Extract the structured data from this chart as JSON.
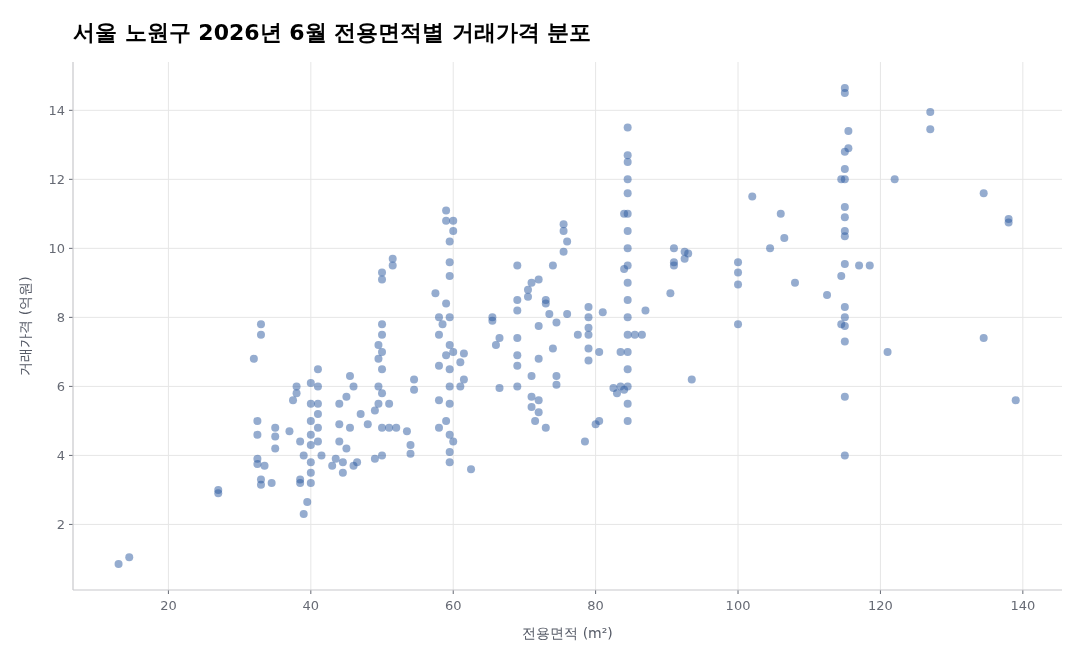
{
  "chart_data": {
    "type": "scatter",
    "title": "서울 노원구 2026년 6월 전용면적별 거래가격 분포",
    "xlabel": "전용면적 (m²)",
    "ylabel": "거래가격 (억원)",
    "xlim": [
      6.6,
      145.5
    ],
    "ylim": [
      0.1,
      15.4
    ],
    "xticks": [
      20,
      40,
      60,
      80,
      100,
      120,
      140
    ],
    "yticks": [
      2,
      4,
      6,
      8,
      10,
      12,
      14
    ],
    "grid": true,
    "marker": "circle",
    "color": "#2c5aa0",
    "x": [
      13,
      14.5,
      27,
      27,
      32,
      32.5,
      32.5,
      32.5,
      32.5,
      33,
      33,
      33,
      33,
      33.5,
      34.5,
      35,
      35,
      35,
      37,
      37.5,
      38,
      38,
      38.5,
      38.5,
      38.5,
      39,
      39,
      39.5,
      40,
      40,
      40,
      40,
      40,
      40,
      40,
      40,
      41,
      41,
      41,
      41,
      41,
      41,
      41.5,
      43,
      43.5,
      44,
      44,
      44,
      44.5,
      44.5,
      45,
      45,
      45.5,
      45.5,
      46,
      46,
      46.5,
      47,
      48,
      49,
      49,
      49.5,
      49.5,
      49.5,
      49.5,
      50,
      50,
      50,
      50,
      50,
      50,
      50,
      50,
      50,
      51,
      51,
      51.5,
      51.5,
      52,
      53.5,
      54,
      54,
      54.5,
      54.5,
      57.5,
      58,
      58,
      58,
      58,
      58,
      58.5,
      59,
      59,
      59,
      59,
      59,
      59.5,
      59.5,
      59.5,
      59.5,
      59.5,
      59.5,
      59.5,
      59.5,
      59.5,
      59.5,
      59.5,
      60,
      60,
      60,
      60,
      61,
      61,
      61.5,
      61.5,
      62.5,
      65.5,
      65.5,
      66,
      66.5,
      66.5,
      69,
      69,
      69,
      69,
      69,
      69,
      69,
      70.5,
      70.5,
      71,
      71,
      71,
      71,
      71.5,
      72,
      72,
      72,
      72,
      72,
      73,
      73,
      73,
      73.5,
      74,
      74,
      74.5,
      74.5,
      74.5,
      75.5,
      75.5,
      75.5,
      76,
      76,
      77.5,
      78.5,
      79,
      79,
      79,
      79,
      79,
      79,
      80,
      80.5,
      80.5,
      81,
      84.5,
      84.5,
      84.5,
      84.5,
      84.5,
      84.5,
      84,
      84.5,
      84.5,
      84.5,
      84.5,
      84.5,
      84.5,
      84.5,
      84.5,
      84.5,
      84.5,
      84.5,
      84.5,
      84,
      83.5,
      83.5,
      83,
      84,
      85.5,
      86.5,
      87,
      82.5,
      90.5,
      91,
      91,
      91,
      92.5,
      92.5,
      93,
      93.5,
      100,
      100,
      100,
      100,
      102,
      104.5,
      106,
      106.5,
      108,
      112.5,
      114.5,
      114.5,
      114.5,
      115,
      115,
      115.5,
      115,
      115,
      115,
      115,
      115,
      115,
      115,
      115,
      115,
      115,
      115,
      115,
      115,
      115,
      115.5,
      117,
      118.5,
      121,
      122,
      127,
      127,
      134.5,
      134.5,
      138,
      138,
      139
    ],
    "values": [
      0.85,
      1.05,
      3.0,
      2.9,
      6.8,
      5.0,
      4.6,
      3.9,
      3.75,
      7.8,
      7.5,
      3.3,
      3.15,
      3.7,
      3.2,
      4.8,
      4.2,
      4.55,
      4.7,
      5.6,
      6.0,
      5.8,
      4.4,
      3.2,
      3.3,
      2.3,
      4.0,
      2.65,
      6.1,
      5.5,
      5.0,
      4.6,
      4.3,
      3.8,
      3.5,
      3.2,
      6.5,
      6.0,
      5.5,
      5.2,
      4.8,
      4.4,
      4.0,
      3.7,
      3.9,
      5.5,
      4.9,
      4.4,
      3.8,
      3.5,
      5.7,
      4.2,
      6.3,
      4.8,
      6.0,
      3.7,
      3.8,
      5.2,
      4.9,
      5.3,
      3.9,
      7.2,
      6.8,
      6.0,
      5.5,
      7.8,
      7.5,
      7.0,
      6.5,
      5.8,
      4.8,
      4.0,
      9.3,
      9.1,
      5.5,
      4.8,
      9.7,
      9.5,
      4.8,
      4.7,
      4.3,
      4.05,
      6.2,
      5.9,
      8.7,
      8.0,
      7.5,
      6.6,
      5.6,
      4.8,
      7.8,
      11.1,
      10.8,
      8.4,
      6.9,
      5.0,
      10.2,
      9.6,
      9.2,
      8.0,
      7.2,
      6.5,
      6.0,
      5.5,
      4.6,
      4.1,
      3.8,
      10.8,
      10.5,
      7.0,
      4.4,
      6.7,
      6.0,
      6.95,
      6.2,
      3.6,
      8.0,
      7.9,
      7.2,
      7.4,
      5.95,
      9.5,
      8.5,
      8.2,
      7.4,
      6.9,
      6.6,
      6.0,
      8.8,
      8.6,
      9.0,
      6.3,
      5.7,
      5.4,
      5.0,
      9.1,
      6.8,
      5.6,
      5.25,
      7.75,
      4.8,
      8.4,
      8.5,
      8.1,
      9.5,
      7.1,
      6.3,
      6.05,
      7.85,
      10.7,
      10.5,
      9.9,
      10.2,
      8.1,
      7.5,
      4.4,
      8.3,
      8.0,
      7.7,
      7.5,
      7.1,
      6.75,
      4.9,
      5.0,
      7.0,
      8.15,
      13.5,
      12.7,
      12.5,
      12.0,
      11.6,
      11.0,
      11.0,
      10.5,
      10.0,
      9.5,
      9.0,
      8.5,
      8.0,
      7.5,
      7.0,
      6.5,
      6.0,
      5.5,
      5.0,
      9.4,
      7.0,
      6.0,
      5.8,
      5.9,
      7.5,
      7.5,
      8.2,
      5.95,
      8.7,
      10.0,
      9.6,
      9.5,
      9.9,
      9.7,
      9.85,
      6.2,
      9.6,
      9.3,
      8.95,
      7.8,
      11.5,
      10.0,
      11.0,
      10.3,
      9.0,
      8.65,
      12.0,
      9.2,
      7.8,
      14.65,
      14.5,
      12.9,
      12.8,
      12.3,
      12.0,
      11.2,
      10.9,
      10.5,
      10.35,
      9.55,
      8.3,
      8.0,
      7.75,
      7.3,
      5.7,
      4.0,
      13.4,
      9.5,
      9.5,
      7.0,
      12.0,
      13.95,
      13.45,
      11.6,
      7.4,
      10.85,
      10.75,
      5.6
    ]
  }
}
